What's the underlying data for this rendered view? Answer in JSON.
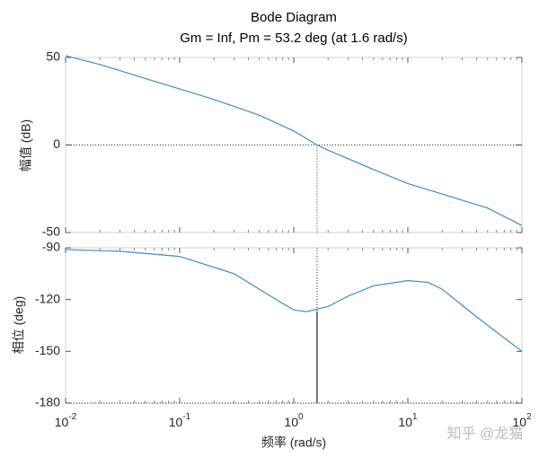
{
  "chart_data": [
    {
      "type": "line",
      "title": "Bode Diagram",
      "subtitle": "Gm = Inf,  Pm = 53.2 deg (at 1.6 rad/s)",
      "ylabel": "幅值 (dB)",
      "xscale": "log",
      "xlim": [
        0.01,
        100
      ],
      "ylim": [
        -50,
        50
      ],
      "yticks": [
        -50,
        0,
        50
      ],
      "color": "#3b8fc6",
      "x": [
        0.01,
        0.02,
        0.05,
        0.1,
        0.2,
        0.5,
        1,
        1.6,
        2,
        5,
        10,
        20,
        50,
        100
      ],
      "values": [
        51,
        46,
        38,
        32,
        26,
        17,
        8,
        0,
        -3,
        -14,
        -22,
        -28,
        -36,
        -46
      ],
      "reference_y": 0,
      "margin": {
        "x": 1.6,
        "y": 0
      }
    },
    {
      "type": "line",
      "ylabel": "相位 (deg)",
      "xlabel": "频率  (rad/s)",
      "xscale": "log",
      "xlim": [
        0.01,
        100
      ],
      "ylim": [
        -180,
        -90
      ],
      "yticks": [
        -180,
        -150,
        -120,
        -90
      ],
      "xticks": [
        {
          "value": 0.01,
          "label": "10",
          "exponent": "-2"
        },
        {
          "value": 0.1,
          "label": "10",
          "exponent": "-1"
        },
        {
          "value": 1,
          "label": "10",
          "exponent": "0"
        },
        {
          "value": 10,
          "label": "10",
          "exponent": "1"
        },
        {
          "value": 100,
          "label": "10",
          "exponent": "2"
        }
      ],
      "color": "#3b8fc6",
      "x": [
        0.01,
        0.03,
        0.1,
        0.3,
        0.7,
        1,
        1.3,
        2,
        3,
        5,
        10,
        15,
        20,
        40,
        100
      ],
      "values": [
        -91,
        -92,
        -95,
        -105,
        -120,
        -126,
        -127,
        -124,
        -118,
        -112,
        -109,
        -110,
        -114,
        -130,
        -150
      ],
      "reference_y": -180,
      "margin": {
        "x": 1.6,
        "y": -126.8
      }
    }
  ],
  "watermark": "知乎 @龙猫"
}
